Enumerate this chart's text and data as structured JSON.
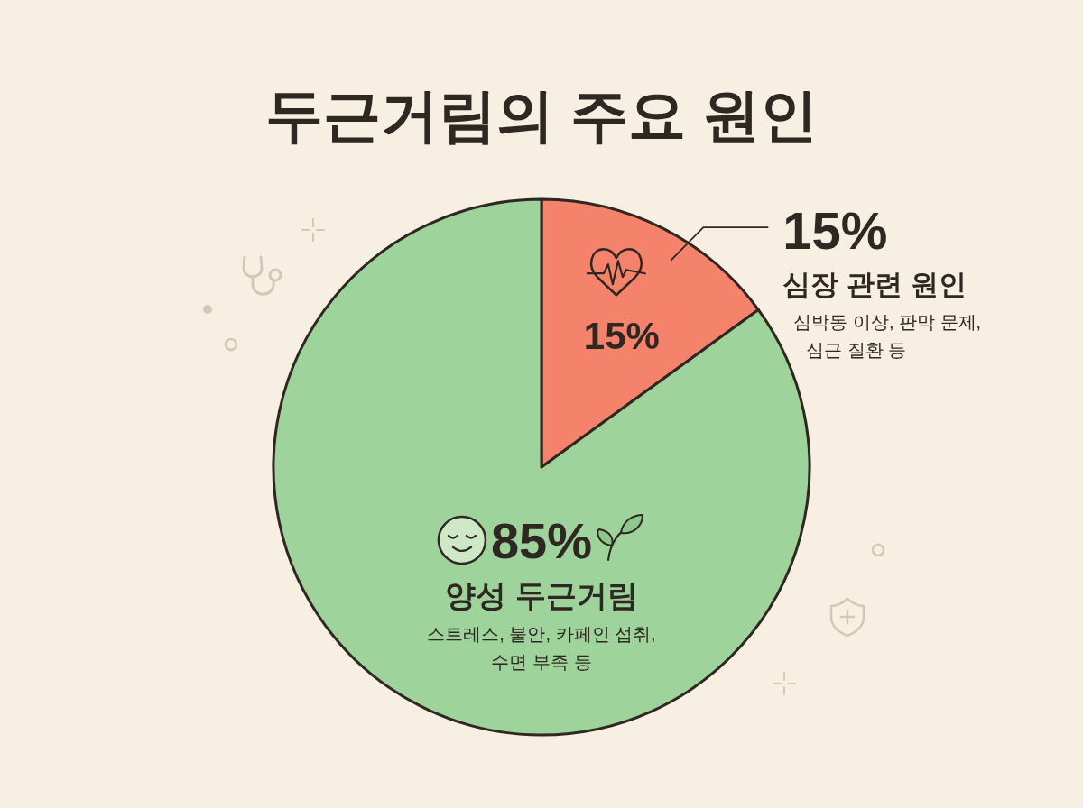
{
  "chart_data": {
    "type": "pie",
    "title": "두근거림의 주요 원인",
    "categories": [
      "심장 관련 원인",
      "양성 두근거림"
    ],
    "values": [
      15,
      85
    ],
    "colors": [
      "#f5836c",
      "#9ed39b"
    ],
    "value_labels": [
      "15%",
      "85%"
    ],
    "annotations": [
      "심박동 이상, 판막 문제, 심근 질환 등",
      "스트레스, 불안, 카페인 섭취, 수면 부족 등"
    ]
  }
}
